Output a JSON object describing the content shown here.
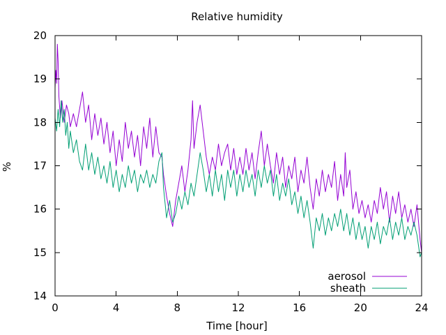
{
  "chart_data": {
    "type": "line",
    "title": "Relative humidity",
    "xlabel": "Time [hour]",
    "ylabel": "%",
    "xlim": [
      0,
      24
    ],
    "ylim": [
      14,
      20
    ],
    "xticks": [
      0,
      4,
      8,
      12,
      16,
      20,
      24
    ],
    "yticks": [
      14,
      15,
      16,
      17,
      18,
      19,
      20
    ],
    "grid": false,
    "legend_position": "bottom-right",
    "colors": {
      "aerosol": "#9400d3",
      "sheath": "#009e73"
    },
    "series": [
      {
        "name": "aerosol",
        "points": [
          [
            0.0,
            18.8
          ],
          [
            0.05,
            19.2
          ],
          [
            0.1,
            18.9
          ],
          [
            0.15,
            19.8
          ],
          [
            0.2,
            19.4
          ],
          [
            0.25,
            18.6
          ],
          [
            0.35,
            18.1
          ],
          [
            0.45,
            18.5
          ],
          [
            0.6,
            18.0
          ],
          [
            0.75,
            18.4
          ],
          [
            0.9,
            18.2
          ],
          [
            1.0,
            17.9
          ],
          [
            1.2,
            18.2
          ],
          [
            1.4,
            17.9
          ],
          [
            1.6,
            18.3
          ],
          [
            1.8,
            18.7
          ],
          [
            2.0,
            18.0
          ],
          [
            2.2,
            18.4
          ],
          [
            2.4,
            17.6
          ],
          [
            2.6,
            18.2
          ],
          [
            2.8,
            17.7
          ],
          [
            3.0,
            18.1
          ],
          [
            3.2,
            17.5
          ],
          [
            3.4,
            18.0
          ],
          [
            3.6,
            17.3
          ],
          [
            3.8,
            17.8
          ],
          [
            4.0,
            17.0
          ],
          [
            4.2,
            17.6
          ],
          [
            4.4,
            17.1
          ],
          [
            4.6,
            18.0
          ],
          [
            4.8,
            17.4
          ],
          [
            5.0,
            17.8
          ],
          [
            5.2,
            17.2
          ],
          [
            5.4,
            17.7
          ],
          [
            5.6,
            17.0
          ],
          [
            5.8,
            17.9
          ],
          [
            6.0,
            17.4
          ],
          [
            6.2,
            18.1
          ],
          [
            6.4,
            17.2
          ],
          [
            6.6,
            17.9
          ],
          [
            6.8,
            17.3
          ],
          [
            7.0,
            17.2
          ],
          [
            7.1,
            16.8
          ],
          [
            7.3,
            16.3
          ],
          [
            7.5,
            15.9
          ],
          [
            7.7,
            15.6
          ],
          [
            7.9,
            16.2
          ],
          [
            8.1,
            16.6
          ],
          [
            8.3,
            17.0
          ],
          [
            8.5,
            16.4
          ],
          [
            8.7,
            16.9
          ],
          [
            8.9,
            17.6
          ],
          [
            9.0,
            18.5
          ],
          [
            9.1,
            17.4
          ],
          [
            9.3,
            18.0
          ],
          [
            9.5,
            18.4
          ],
          [
            9.7,
            17.8
          ],
          [
            9.9,
            17.2
          ],
          [
            10.1,
            16.8
          ],
          [
            10.3,
            17.2
          ],
          [
            10.5,
            16.9
          ],
          [
            10.7,
            17.5
          ],
          [
            10.9,
            17.0
          ],
          [
            11.1,
            17.3
          ],
          [
            11.3,
            17.5
          ],
          [
            11.5,
            16.9
          ],
          [
            11.7,
            17.4
          ],
          [
            11.9,
            16.8
          ],
          [
            12.1,
            17.2
          ],
          [
            12.3,
            16.8
          ],
          [
            12.5,
            17.4
          ],
          [
            12.7,
            16.9
          ],
          [
            12.9,
            17.3
          ],
          [
            13.1,
            16.7
          ],
          [
            13.3,
            17.3
          ],
          [
            13.5,
            17.8
          ],
          [
            13.7,
            17.0
          ],
          [
            13.9,
            17.5
          ],
          [
            14.1,
            17.0
          ],
          [
            14.3,
            16.6
          ],
          [
            14.5,
            17.3
          ],
          [
            14.7,
            16.8
          ],
          [
            14.9,
            17.2
          ],
          [
            15.1,
            16.5
          ],
          [
            15.3,
            17.0
          ],
          [
            15.5,
            16.7
          ],
          [
            15.7,
            17.2
          ],
          [
            15.9,
            16.4
          ],
          [
            16.1,
            16.9
          ],
          [
            16.3,
            16.6
          ],
          [
            16.5,
            17.2
          ],
          [
            16.7,
            16.5
          ],
          [
            16.9,
            16.0
          ],
          [
            17.1,
            16.7
          ],
          [
            17.3,
            16.3
          ],
          [
            17.5,
            16.9
          ],
          [
            17.7,
            16.4
          ],
          [
            17.9,
            16.8
          ],
          [
            18.1,
            16.5
          ],
          [
            18.3,
            17.1
          ],
          [
            18.5,
            16.2
          ],
          [
            18.7,
            16.8
          ],
          [
            18.9,
            16.3
          ],
          [
            19.0,
            17.3
          ],
          [
            19.1,
            16.5
          ],
          [
            19.3,
            16.9
          ],
          [
            19.5,
            16.0
          ],
          [
            19.7,
            16.4
          ],
          [
            19.9,
            15.9
          ],
          [
            20.1,
            16.2
          ],
          [
            20.3,
            15.8
          ],
          [
            20.5,
            16.1
          ],
          [
            20.7,
            15.7
          ],
          [
            20.9,
            16.2
          ],
          [
            21.1,
            15.9
          ],
          [
            21.3,
            16.5
          ],
          [
            21.5,
            16.0
          ],
          [
            21.7,
            16.4
          ],
          [
            21.9,
            15.7
          ],
          [
            22.1,
            16.3
          ],
          [
            22.3,
            15.9
          ],
          [
            22.5,
            16.4
          ],
          [
            22.7,
            15.8
          ],
          [
            22.9,
            16.1
          ],
          [
            23.1,
            15.7
          ],
          [
            23.3,
            16.0
          ],
          [
            23.5,
            15.6
          ],
          [
            23.7,
            16.1
          ],
          [
            23.9,
            15.3
          ],
          [
            24.0,
            15.0
          ]
        ]
      },
      {
        "name": "sheath",
        "points": [
          [
            0.0,
            18.1
          ],
          [
            0.1,
            17.8
          ],
          [
            0.2,
            18.3
          ],
          [
            0.3,
            17.9
          ],
          [
            0.4,
            18.5
          ],
          [
            0.5,
            18.0
          ],
          [
            0.6,
            18.3
          ],
          [
            0.7,
            17.7
          ],
          [
            0.8,
            18.0
          ],
          [
            0.9,
            17.4
          ],
          [
            1.0,
            17.8
          ],
          [
            1.2,
            17.3
          ],
          [
            1.4,
            17.6
          ],
          [
            1.6,
            17.1
          ],
          [
            1.8,
            16.9
          ],
          [
            2.0,
            17.5
          ],
          [
            2.2,
            16.9
          ],
          [
            2.4,
            17.3
          ],
          [
            2.6,
            16.8
          ],
          [
            2.8,
            17.2
          ],
          [
            3.0,
            16.7
          ],
          [
            3.2,
            17.0
          ],
          [
            3.4,
            16.6
          ],
          [
            3.6,
            17.1
          ],
          [
            3.8,
            16.5
          ],
          [
            4.0,
            16.9
          ],
          [
            4.2,
            16.4
          ],
          [
            4.4,
            16.8
          ],
          [
            4.6,
            16.5
          ],
          [
            4.8,
            17.0
          ],
          [
            5.0,
            16.6
          ],
          [
            5.2,
            16.9
          ],
          [
            5.4,
            16.4
          ],
          [
            5.6,
            16.8
          ],
          [
            5.8,
            16.6
          ],
          [
            6.0,
            16.9
          ],
          [
            6.2,
            16.5
          ],
          [
            6.4,
            16.8
          ],
          [
            6.6,
            16.6
          ],
          [
            6.8,
            17.1
          ],
          [
            7.0,
            17.3
          ],
          [
            7.1,
            16.5
          ],
          [
            7.3,
            15.8
          ],
          [
            7.5,
            16.2
          ],
          [
            7.7,
            15.7
          ],
          [
            7.9,
            15.9
          ],
          [
            8.1,
            16.3
          ],
          [
            8.3,
            16.0
          ],
          [
            8.5,
            16.4
          ],
          [
            8.7,
            16.1
          ],
          [
            8.9,
            16.6
          ],
          [
            9.1,
            16.3
          ],
          [
            9.3,
            16.8
          ],
          [
            9.5,
            17.3
          ],
          [
            9.7,
            16.9
          ],
          [
            9.9,
            16.4
          ],
          [
            10.1,
            16.8
          ],
          [
            10.3,
            16.3
          ],
          [
            10.5,
            16.9
          ],
          [
            10.7,
            16.4
          ],
          [
            10.9,
            16.8
          ],
          [
            11.1,
            16.2
          ],
          [
            11.3,
            16.9
          ],
          [
            11.5,
            16.5
          ],
          [
            11.7,
            16.9
          ],
          [
            11.9,
            16.3
          ],
          [
            12.1,
            16.8
          ],
          [
            12.3,
            16.4
          ],
          [
            12.5,
            16.9
          ],
          [
            12.7,
            16.5
          ],
          [
            12.9,
            16.8
          ],
          [
            13.1,
            16.3
          ],
          [
            13.3,
            16.9
          ],
          [
            13.5,
            16.5
          ],
          [
            13.7,
            17.0
          ],
          [
            13.9,
            16.6
          ],
          [
            14.1,
            16.9
          ],
          [
            14.3,
            16.3
          ],
          [
            14.5,
            16.8
          ],
          [
            14.7,
            16.2
          ],
          [
            14.9,
            16.6
          ],
          [
            15.1,
            16.3
          ],
          [
            15.3,
            16.7
          ],
          [
            15.5,
            16.1
          ],
          [
            15.7,
            16.4
          ],
          [
            15.9,
            15.9
          ],
          [
            16.1,
            16.3
          ],
          [
            16.3,
            15.8
          ],
          [
            16.5,
            16.2
          ],
          [
            16.7,
            15.7
          ],
          [
            16.9,
            15.1
          ],
          [
            17.1,
            15.8
          ],
          [
            17.3,
            15.5
          ],
          [
            17.5,
            15.9
          ],
          [
            17.7,
            15.4
          ],
          [
            17.9,
            15.8
          ],
          [
            18.1,
            15.5
          ],
          [
            18.3,
            15.9
          ],
          [
            18.5,
            15.6
          ],
          [
            18.7,
            16.0
          ],
          [
            18.9,
            15.5
          ],
          [
            19.1,
            15.9
          ],
          [
            19.3,
            15.4
          ],
          [
            19.5,
            15.8
          ],
          [
            19.7,
            15.3
          ],
          [
            19.9,
            15.7
          ],
          [
            20.1,
            15.3
          ],
          [
            20.3,
            15.6
          ],
          [
            20.5,
            15.1
          ],
          [
            20.7,
            15.6
          ],
          [
            20.9,
            15.3
          ],
          [
            21.1,
            15.7
          ],
          [
            21.3,
            15.2
          ],
          [
            21.5,
            15.6
          ],
          [
            21.7,
            15.4
          ],
          [
            21.9,
            15.8
          ],
          [
            22.1,
            15.3
          ],
          [
            22.3,
            15.7
          ],
          [
            22.5,
            15.4
          ],
          [
            22.7,
            15.8
          ],
          [
            22.9,
            15.3
          ],
          [
            23.1,
            15.6
          ],
          [
            23.3,
            15.4
          ],
          [
            23.5,
            15.7
          ],
          [
            23.7,
            15.4
          ],
          [
            23.9,
            14.9
          ],
          [
            24.0,
            15.0
          ]
        ]
      }
    ]
  }
}
